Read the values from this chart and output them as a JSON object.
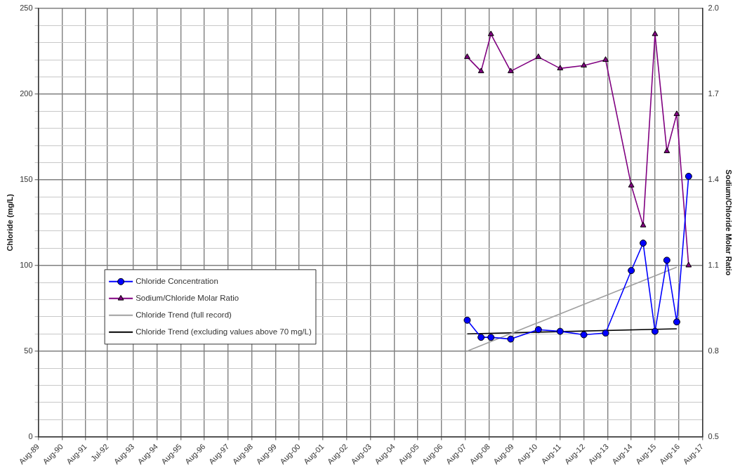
{
  "chart_data": {
    "type": "line",
    "ylabel": "Chloride (mg/L)",
    "y2label": "Sodium/Chloride Molar Ratio",
    "xlim": [
      "1989-08",
      "2017-08"
    ],
    "xticks": [
      {
        "value": "1989-08",
        "label": "Aug-89"
      },
      {
        "value": "1990-08",
        "label": "Aug-90"
      },
      {
        "value": "1991-08",
        "label": "Aug-91"
      },
      {
        "value": "1992-07",
        "label": "Jul-92"
      },
      {
        "value": "1993-08",
        "label": "Aug-93"
      },
      {
        "value": "1994-08",
        "label": "Aug-94"
      },
      {
        "value": "1995-08",
        "label": "Aug-95"
      },
      {
        "value": "1996-08",
        "label": "Aug-96"
      },
      {
        "value": "1997-08",
        "label": "Aug-97"
      },
      {
        "value": "1998-08",
        "label": "Aug-98"
      },
      {
        "value": "1999-08",
        "label": "Aug-99"
      },
      {
        "value": "2000-08",
        "label": "Aug-00"
      },
      {
        "value": "2001-08",
        "label": "Aug-01"
      },
      {
        "value": "2002-08",
        "label": "Aug-02"
      },
      {
        "value": "2003-08",
        "label": "Aug-03"
      },
      {
        "value": "2004-08",
        "label": "Aug-04"
      },
      {
        "value": "2005-08",
        "label": "Aug-05"
      },
      {
        "value": "2006-08",
        "label": "Aug-06"
      },
      {
        "value": "2007-08",
        "label": "Aug-07"
      },
      {
        "value": "2008-08",
        "label": "Aug-08"
      },
      {
        "value": "2009-08",
        "label": "Aug-09"
      },
      {
        "value": "2010-08",
        "label": "Aug-10"
      },
      {
        "value": "2011-08",
        "label": "Aug-11"
      },
      {
        "value": "2012-08",
        "label": "Aug-12"
      },
      {
        "value": "2013-08",
        "label": "Aug-13"
      },
      {
        "value": "2014-08",
        "label": "Aug-14"
      },
      {
        "value": "2015-08",
        "label": "Aug-15"
      },
      {
        "value": "2016-08",
        "label": "Aug-16"
      },
      {
        "value": "2017-08",
        "label": "Aug-17"
      }
    ],
    "ylim": [
      0,
      250
    ],
    "yticks": [
      0,
      {
        "value": 10,
        "label": null
      },
      {
        "value": 20,
        "label": null
      },
      {
        "value": 30,
        "label": null
      },
      {
        "value": 40,
        "label": null
      },
      50,
      {
        "value": 60,
        "label": null
      },
      {
        "value": 70,
        "label": null
      },
      {
        "value": 80,
        "label": null
      },
      {
        "value": 90,
        "label": null
      },
      100,
      {
        "value": 110,
        "label": null
      },
      {
        "value": 120,
        "label": null
      },
      {
        "value": 130,
        "label": null
      },
      {
        "value": 140,
        "label": null
      },
      150,
      {
        "value": 160,
        "label": null
      },
      {
        "value": 170,
        "label": null
      },
      {
        "value": 180,
        "label": null
      },
      {
        "value": 190,
        "label": null
      },
      200,
      {
        "value": 210,
        "label": null
      },
      {
        "value": 220,
        "label": null
      },
      {
        "value": 230,
        "label": null
      },
      {
        "value": 240,
        "label": null
      },
      250
    ],
    "y2lim": [
      0.5,
      2.0
    ],
    "y2ticks": [
      0.5,
      0.8,
      1.1,
      1.4,
      1.7,
      {
        "value": 2.0,
        "label": "2.0"
      }
    ],
    "grid": true,
    "legend": "left",
    "line_style": "solid",
    "series": [
      {
        "name": "Chloride Concentration",
        "color": "#0000ff",
        "marker": "circle",
        "x": [
          "2007-09",
          "2008-04",
          "2008-09",
          "2009-07",
          "2010-09",
          "2011-08",
          "2012-08",
          "2013-07",
          "2014-08",
          "2015-02",
          "2015-08",
          "2016-02",
          "2016-07",
          "2017-01"
        ],
        "values": [
          68,
          58,
          58,
          57,
          62.5,
          61.5,
          59.5,
          60.5,
          97,
          113,
          61.5,
          103,
          67,
          152
        ]
      },
      {
        "name": "Sodium/Chloride Molar Ratio",
        "color": "#800080",
        "marker": "triangle",
        "axis": "y2",
        "x": [
          "2007-09",
          "2008-04",
          "2008-09",
          "2009-07",
          "2010-09",
          "2011-08",
          "2012-08",
          "2013-07",
          "2014-08",
          "2015-02",
          "2015-08",
          "2016-02",
          "2016-07",
          "2017-01"
        ],
        "values": [
          1.83,
          1.78,
          1.91,
          1.78,
          1.83,
          1.79,
          1.8,
          1.82,
          1.38,
          1.24,
          1.91,
          1.5,
          1.63,
          1.1
        ]
      },
      {
        "name": "Chloride Trend (full record)",
        "color": "#a0a0a0",
        "marker": "none",
        "x": [
          "2007-09",
          "2016-07"
        ],
        "values": [
          50,
          99
        ]
      },
      {
        "name": "Chloride Trend (excluding values above 70 mg/L)",
        "color": "#000000",
        "marker": "none",
        "x": [
          "2007-09",
          "2016-07"
        ],
        "values": [
          60,
          63
        ]
      }
    ]
  }
}
